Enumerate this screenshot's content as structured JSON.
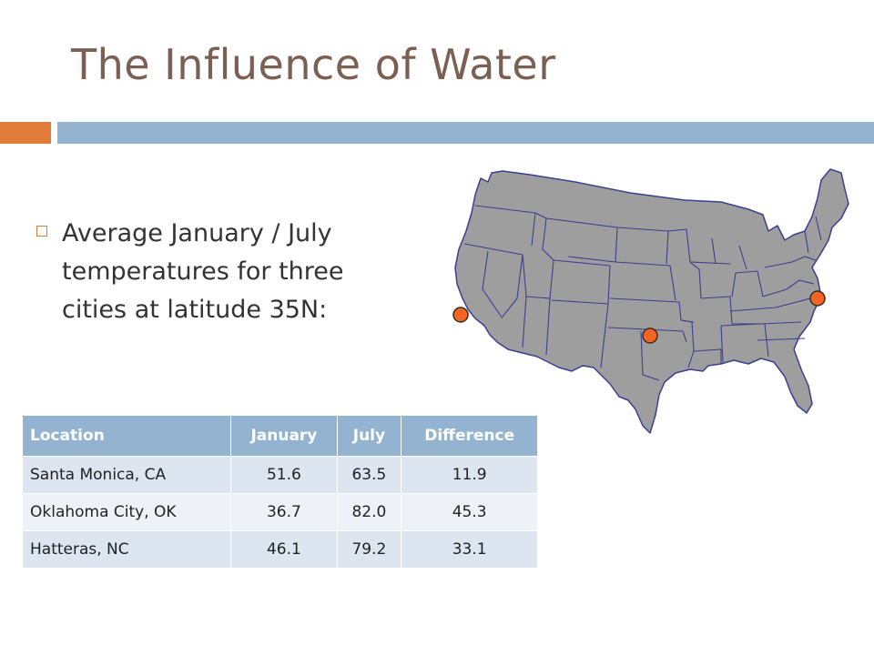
{
  "slide": {
    "title": "The Influence of Water",
    "bullet": "Average January / July temperatures for three cities at latitude 35N:"
  },
  "map": {
    "fill_color": "#9e9e9e",
    "border_color": "#3b3f8f",
    "marker_color": "#f26522",
    "markers": [
      "Santa Monica, CA",
      "Oklahoma City, OK",
      "Hatteras, NC"
    ]
  },
  "table": {
    "headers": [
      "Location",
      "January",
      "July",
      "Difference"
    ],
    "rows": [
      [
        "Santa Monica, CA",
        "51.6",
        "63.5",
        "11.9"
      ],
      [
        "Oklahoma City, OK",
        "36.7",
        "82.0",
        "45.3"
      ],
      [
        "Hatteras, NC",
        "46.1",
        "79.2",
        "33.1"
      ]
    ]
  }
}
